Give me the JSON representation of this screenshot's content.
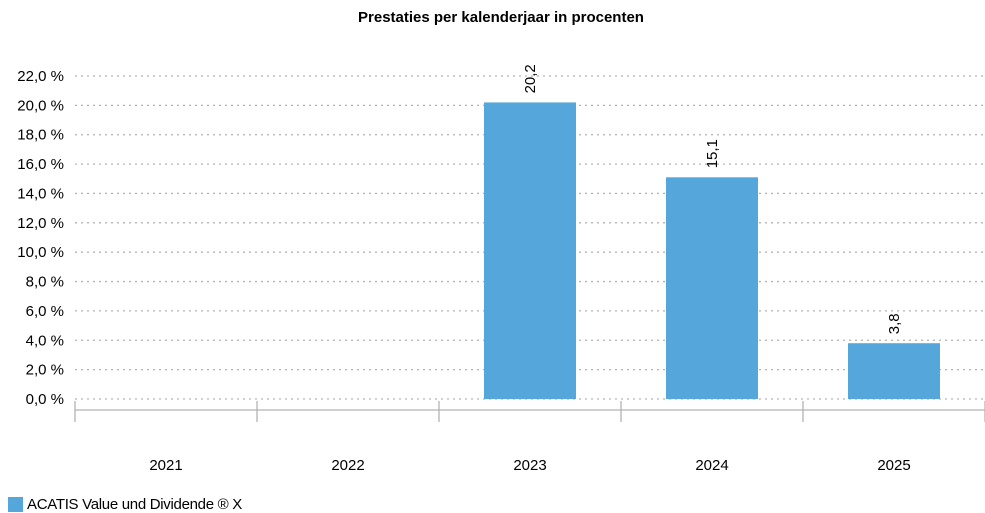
{
  "chart_data": {
    "type": "bar",
    "title": "Prestaties per kalenderjaar in procenten",
    "categories": [
      "2021",
      "2022",
      "2023",
      "2024",
      "2025"
    ],
    "series": [
      {
        "name": "ACATIS Value und Dividende ® X",
        "values": [
          null,
          null,
          20.2,
          15.1,
          3.8
        ],
        "labels": [
          "",
          "",
          "20,2",
          "15,1",
          "3,8"
        ],
        "color": "#55a6db"
      }
    ],
    "ylim": [
      0,
      22
    ],
    "yticks": [
      0,
      2,
      4,
      6,
      8,
      10,
      12,
      14,
      16,
      18,
      20,
      22
    ],
    "ytick_labels": [
      "0,0 %",
      "2,0 %",
      "4,0 %",
      "6,0 %",
      "8,0 %",
      "10,0 %",
      "12,0 %",
      "14,0 %",
      "16,0 %",
      "18,0 %",
      "20,0 %",
      "22,0 %"
    ],
    "xlabel": "",
    "ylabel": "",
    "grid": true,
    "legend_position": "bottom-left"
  }
}
